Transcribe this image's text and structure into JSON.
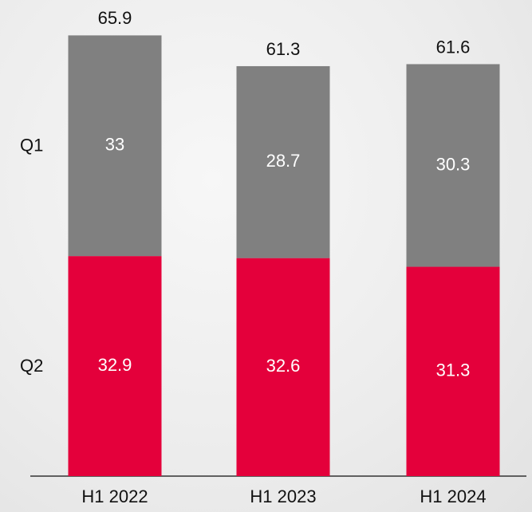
{
  "chart_data": {
    "type": "stacked_bar",
    "categories": [
      "H1 2022",
      "H1 2023",
      "H1 2024"
    ],
    "series": [
      {
        "name": "Q2",
        "color": "#e4003b",
        "label_color": "#ffffff",
        "values": [
          32.9,
          32.6,
          31.3
        ]
      },
      {
        "name": "Q1",
        "color": "#808080",
        "label_color": "#ffffff",
        "values": [
          33.0,
          28.7,
          30.3
        ]
      }
    ],
    "totals": [
      65.9,
      61.3,
      61.6
    ],
    "ylim": [
      0,
      70
    ]
  }
}
